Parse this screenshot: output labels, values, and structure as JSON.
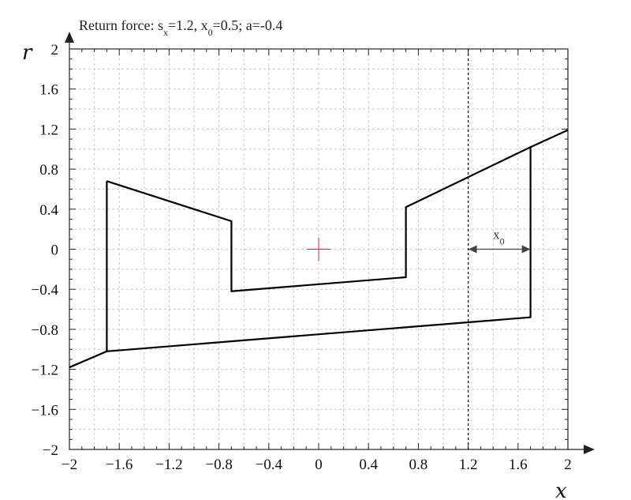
{
  "chart_data": {
    "type": "line",
    "title_prefix": "Return force: s",
    "title_sx_sub": "x",
    "title_sx_rest": "=1.2, x",
    "title_x0_sub": "0",
    "title_rest": "=0.5; a=-0.4",
    "xlabel": "x",
    "ylabel": "r",
    "xlim": [
      -2,
      2
    ],
    "ylim": [
      -2,
      2
    ],
    "grid": true,
    "x_ticks": [
      -2,
      -1.6,
      -1.2,
      -0.8,
      -0.4,
      0,
      0.4,
      0.8,
      1.2,
      1.6,
      2
    ],
    "y_ticks": [
      -2,
      -1.6,
      -1.2,
      -0.8,
      -0.4,
      0,
      0.4,
      0.8,
      1.2,
      1.6,
      2
    ],
    "x_tick_labels": [
      "−2",
      "−1.6",
      "−1.2",
      "−0.8",
      "−0.4",
      "0",
      "0.4",
      "0.8",
      "1.2",
      "1.6",
      "2"
    ],
    "y_tick_labels": [
      "−2",
      "−1.6",
      "−1.2",
      "−0.8",
      "−0.4",
      "0",
      "0.4",
      "0.8",
      "1.2",
      "1.6",
      "2"
    ],
    "series": [
      {
        "color": "#000000",
        "x": [
          -1.7,
          -0.7,
          -0.7,
          0.7,
          0.7,
          1.7,
          1.7,
          -1.7,
          -1.7
        ],
        "y": [
          0.68,
          0.28,
          -0.42,
          -0.28,
          0.42,
          1.02,
          -0.68,
          -1.02,
          0.68
        ]
      },
      {
        "color": "#000000",
        "x": [
          -2,
          -1.7
        ],
        "y": [
          -1.18,
          -1.02
        ]
      },
      {
        "color": "#000000",
        "x": [
          1.7,
          2
        ],
        "y": [
          1.02,
          1.19
        ]
      }
    ],
    "reference_line_x": 1.2,
    "origin_marker_color": "#d62728",
    "annotation": {
      "label": "x",
      "sub": "0",
      "x_from": 1.2,
      "x_to": 1.7,
      "y": 0
    }
  }
}
